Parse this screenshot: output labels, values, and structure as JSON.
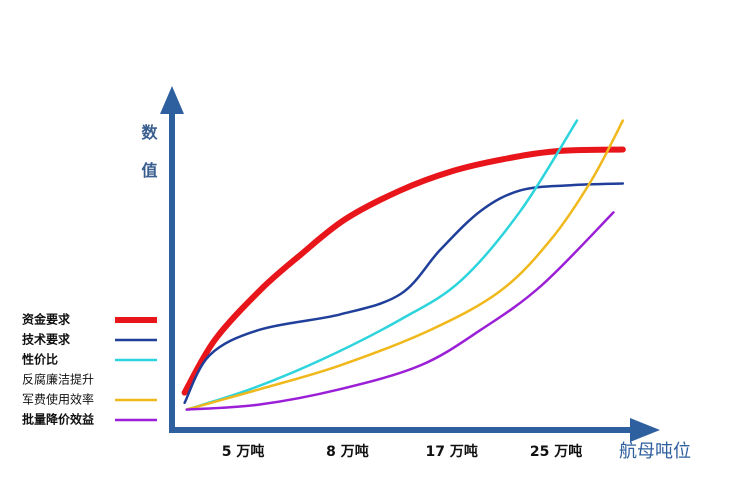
{
  "chart_data": {
    "type": "line",
    "ylabel": "数值",
    "xlabel": "航母吨位",
    "xlim": [
      0.3,
      4.9
    ],
    "xticks": [
      {
        "value": 1,
        "label": "5 万吨"
      },
      {
        "value": 2,
        "label": "8 万吨"
      },
      {
        "value": 3,
        "label": "17 万吨"
      },
      {
        "value": 4,
        "label": "25 万吨"
      }
    ],
    "ylim": [
      0,
      100
    ],
    "axis_color": "#2e5f9e",
    "legend": "left",
    "series": [
      {
        "name": "资金要求",
        "color": "#e8161b",
        "width": 6,
        "bold": true,
        "x": [
          0.44,
          0.73,
          1.16,
          1.55,
          1.98,
          2.51,
          2.99,
          3.47,
          4.0,
          4.64
        ],
        "values": [
          11,
          26.5,
          41,
          51.5,
          62,
          70.5,
          76,
          79.5,
          82,
          82.5
        ]
      },
      {
        "name": "技术要求",
        "color": "#1f3f9a",
        "width": 2.5,
        "bold": true,
        "x": [
          0.44,
          0.68,
          1.16,
          1.93,
          2.51,
          2.89,
          3.28,
          3.66,
          4.14,
          4.64
        ],
        "values": [
          8,
          22,
          29.5,
          34,
          40,
          53,
          64.5,
          70.5,
          72,
          72.5
        ]
      },
      {
        "name": "性价比",
        "color": "#2dd4dc",
        "width": 2.5,
        "bold": true,
        "x": [
          0.46,
          1.07,
          1.74,
          2.51,
          3.09,
          3.66,
          4.2
        ],
        "values": [
          6,
          12,
          20.5,
          32.5,
          44,
          64.5,
          91
        ]
      },
      {
        "name": "反腐廉洁提升",
        "bold": false
      },
      {
        "name": "军费使用效率",
        "color": "#f0b81a",
        "width": 2.5,
        "bold": false,
        "x": [
          0.46,
          1.16,
          1.93,
          2.8,
          3.47,
          3.95,
          4.34,
          4.64
        ],
        "values": [
          6,
          12,
          19,
          29.5,
          41,
          56,
          73.5,
          91
        ]
      },
      {
        "name": "批量降价效益",
        "color": "#9b1fd6",
        "width": 2.5,
        "bold": true,
        "x": [
          0.46,
          1.16,
          1.93,
          2.7,
          3.28,
          3.86,
          4.55
        ],
        "values": [
          6,
          7.5,
          12,
          19,
          29.5,
          42.5,
          64
        ]
      }
    ]
  }
}
